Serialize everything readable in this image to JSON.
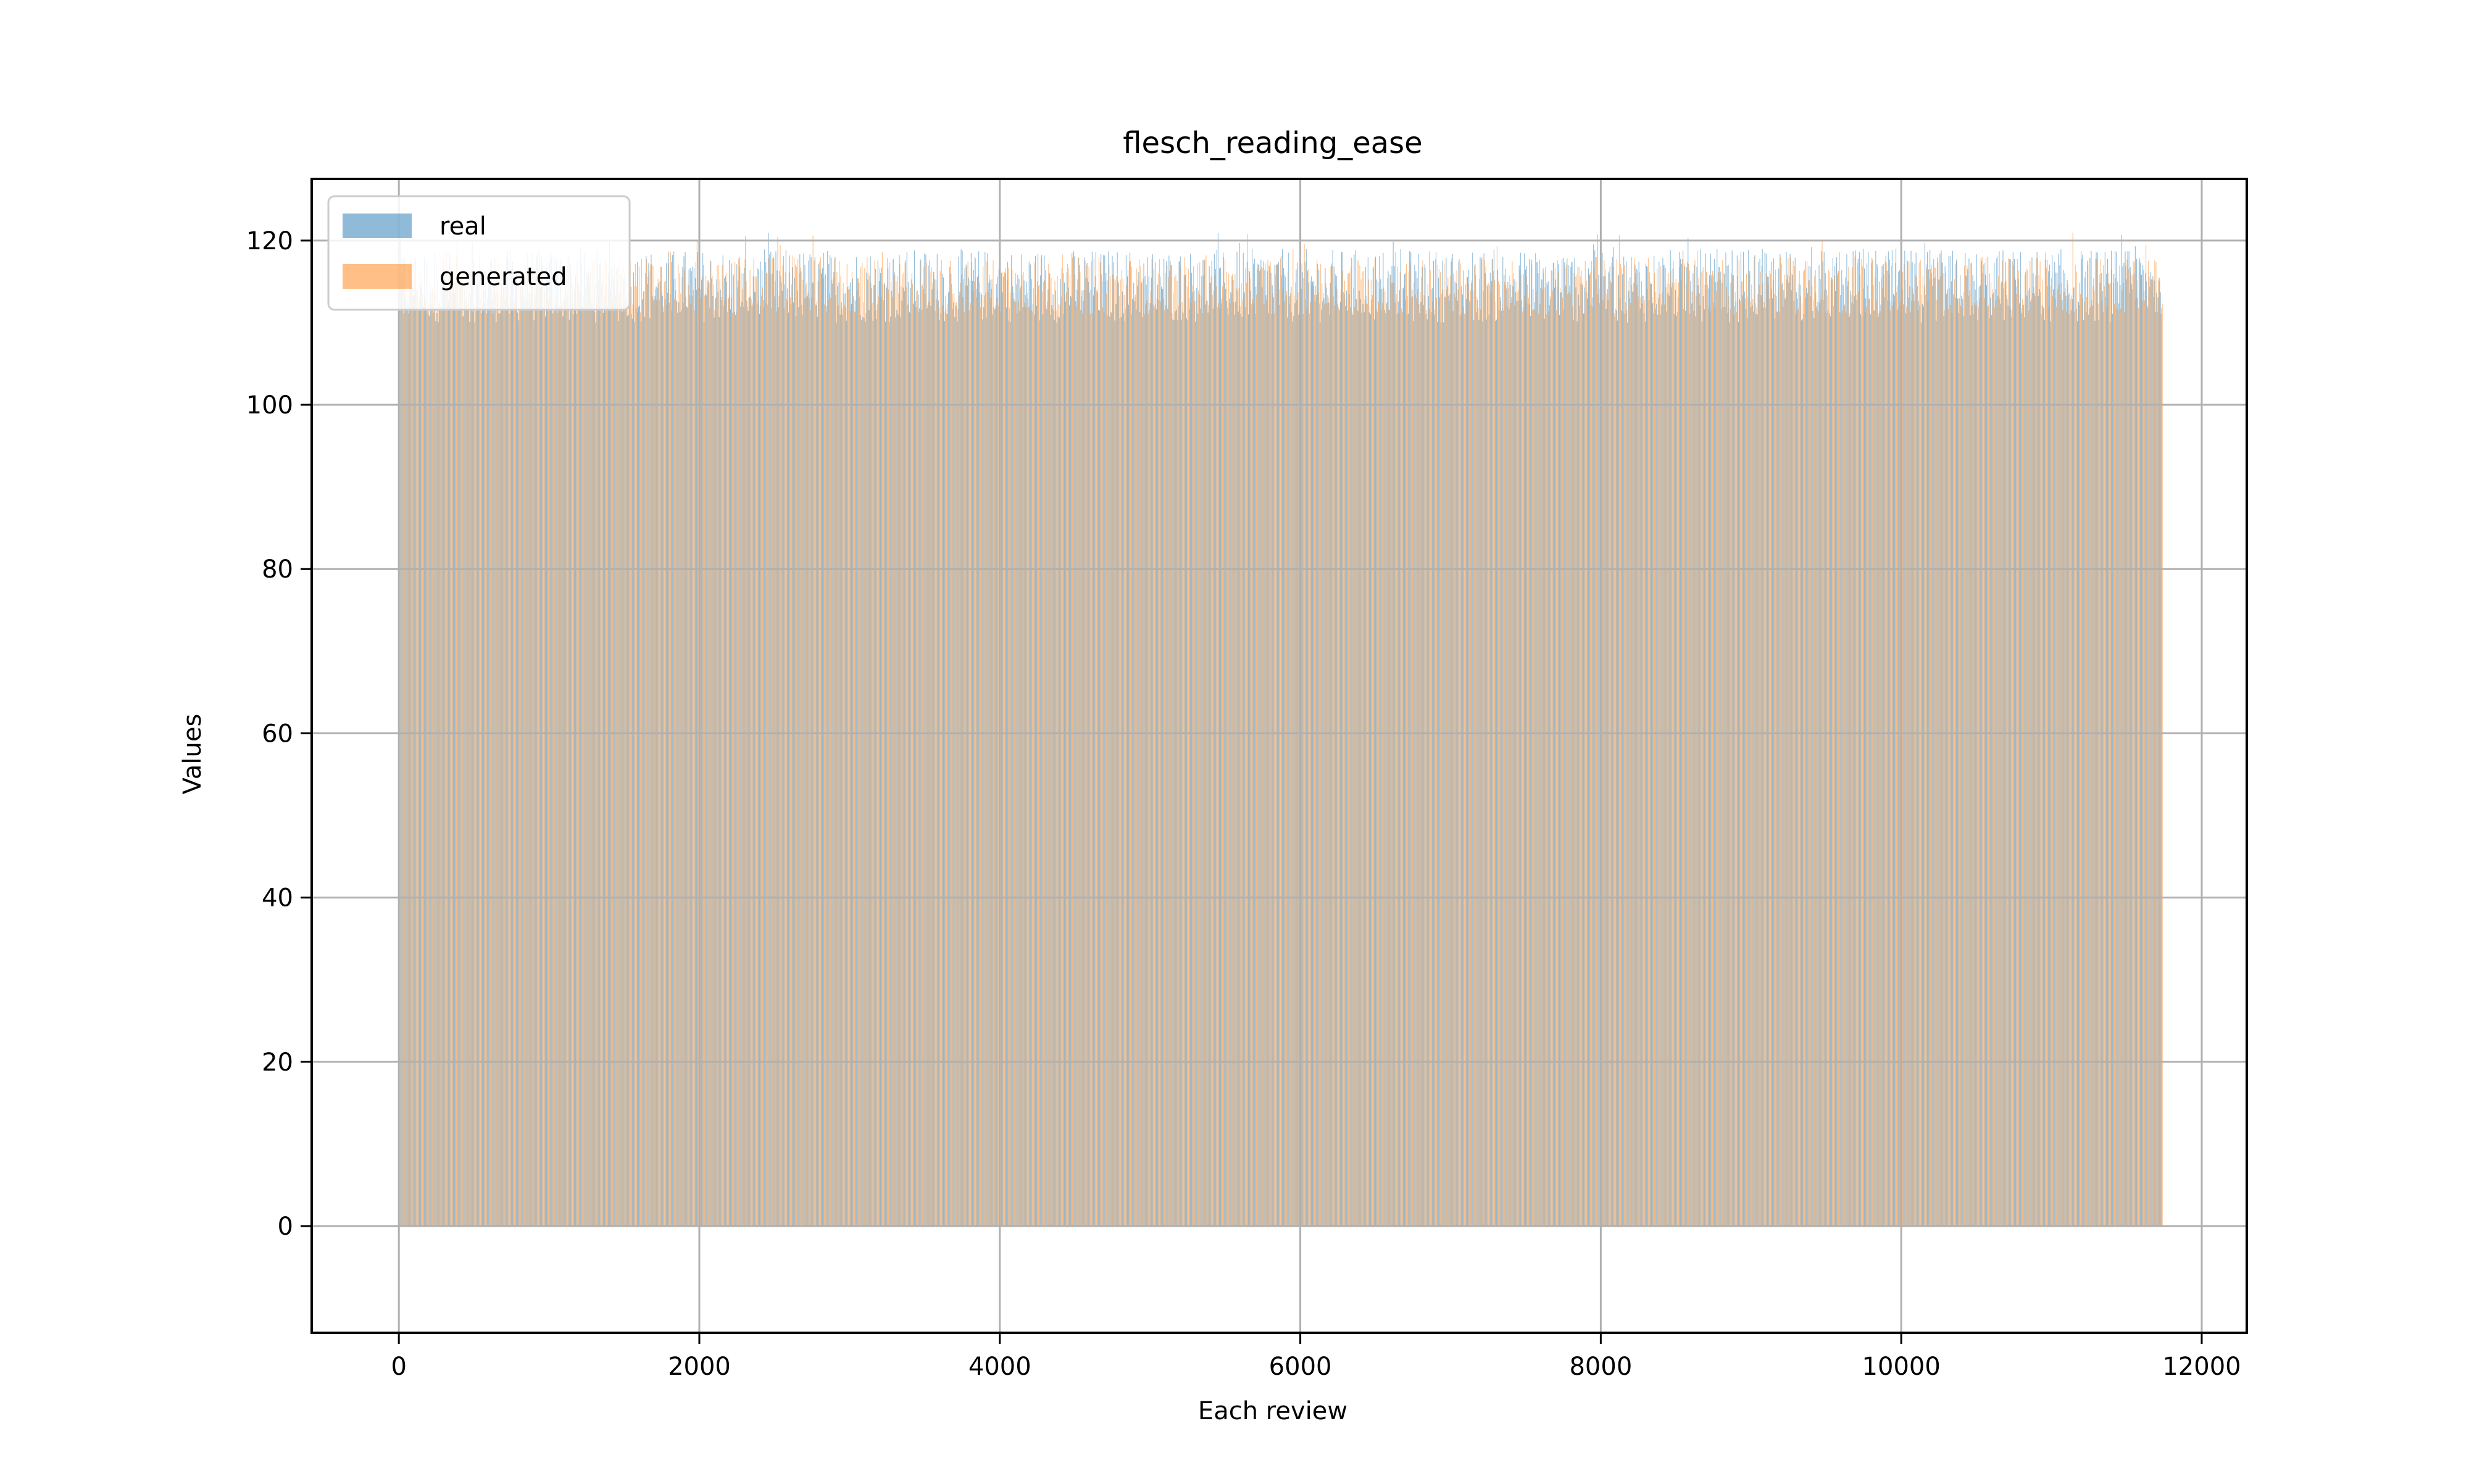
{
  "chart_data": {
    "type": "bar",
    "title": "flesch_reading_ease",
    "xlabel": "Each review",
    "ylabel": "Values",
    "xlim": [
      -580,
      12300
    ],
    "ylim": [
      -13,
      127.5
    ],
    "x_ticks": [
      0,
      2000,
      4000,
      6000,
      8000,
      10000,
      12000
    ],
    "x_tick_labels": [
      "0",
      "2000",
      "4000",
      "6000",
      "8000",
      "10000",
      "12000"
    ],
    "y_ticks": [
      0,
      20,
      40,
      60,
      80,
      100,
      120
    ],
    "y_tick_labels": [
      "0",
      "20",
      "40",
      "60",
      "80",
      "100",
      "120"
    ],
    "grid": true,
    "legend_position": "top-left",
    "x_range": [
      0,
      11740
    ],
    "series": [
      {
        "name": "real",
        "color": "#1f77b4",
        "opacity": 0.5,
        "typical_range": [
          110,
          119
        ],
        "max": 121,
        "values_summary": "one bar per review (~11740 reviews); heights mostly between 110 and 119, with occasional spikes up to about 121"
      },
      {
        "name": "generated",
        "color": "#ff7f0e",
        "opacity": 0.5,
        "typical_range": [
          111,
          118
        ],
        "max": 121,
        "values_summary": "one bar per review (~11740 reviews); heights mostly between 111 and 118"
      }
    ]
  }
}
